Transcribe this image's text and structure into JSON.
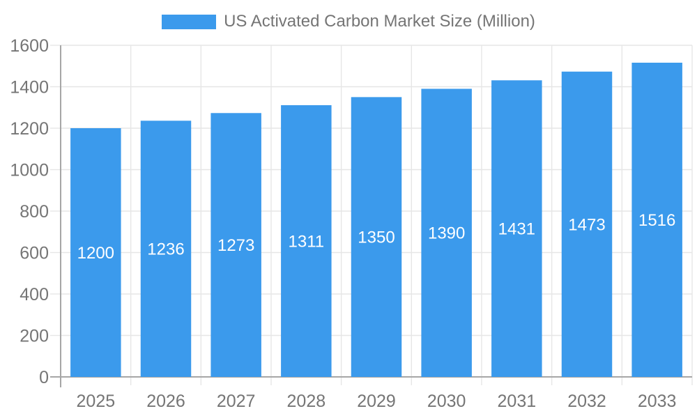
{
  "legend": {
    "label": "US Activated Carbon Market Size (Million)",
    "swatch_color": "#3B9AEC"
  },
  "chart_data": {
    "type": "bar",
    "title": "US Activated Carbon Market Size (Million)",
    "series_name": "US Activated Carbon Market Size (Million)",
    "categories": [
      "2025",
      "2026",
      "2027",
      "2028",
      "2029",
      "2030",
      "2031",
      "2032",
      "2033"
    ],
    "values": [
      1200,
      1236,
      1273,
      1311,
      1350,
      1390,
      1431,
      1473,
      1516
    ],
    "value_labels": [
      "1200",
      "1236",
      "1273",
      "1311",
      "1350",
      "1390",
      "1431",
      "1473",
      "1516"
    ],
    "xlabel": "",
    "ylabel": "",
    "ylim": [
      0,
      1600
    ],
    "y_ticks": [
      0,
      200,
      400,
      600,
      800,
      1000,
      1200,
      1400,
      1600
    ],
    "y_tick_labels": [
      "0",
      "200",
      "400",
      "600",
      "800",
      "1000",
      "1200",
      "1400",
      "1600"
    ],
    "grid": true,
    "legend_position": "top",
    "colors": {
      "bar": "#3B9AEC",
      "value_label": "#ffffff",
      "axis_text": "#757575",
      "grid_line": "#e6e6e6",
      "axis_line": "#a6a6a6"
    },
    "fonts": {
      "axis_size": 25,
      "value_size": 24
    }
  }
}
